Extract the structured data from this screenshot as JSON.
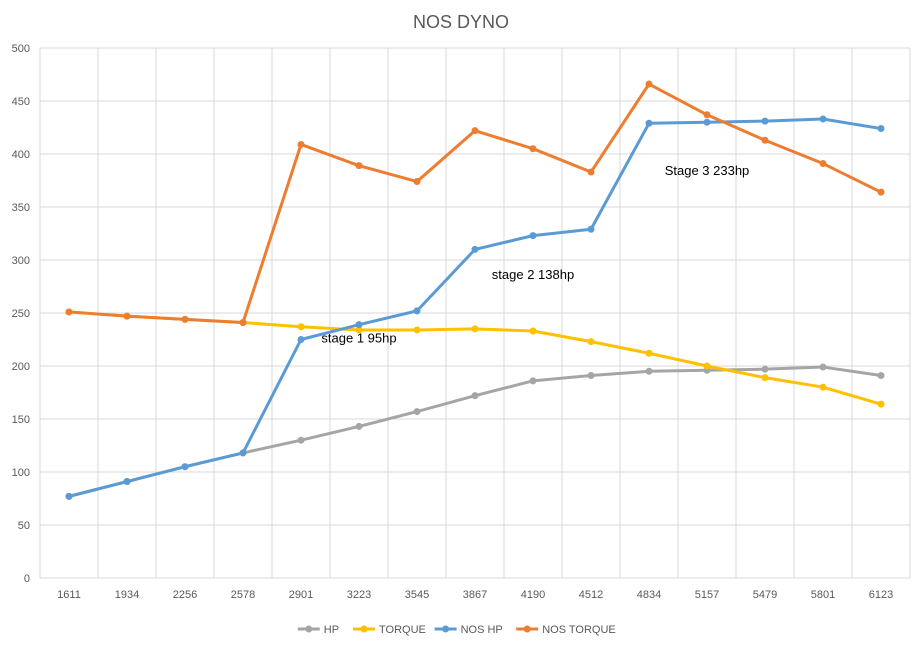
{
  "chart_data": {
    "type": "line",
    "title": "NOS DYNO",
    "categories": [
      "1611",
      "1934",
      "2256",
      "2578",
      "2901",
      "3223",
      "3545",
      "3867",
      "4190",
      "4512",
      "4834",
      "5157",
      "5479",
      "5801",
      "6123"
    ],
    "ylim": [
      0,
      500
    ],
    "yticks": [
      0,
      50,
      100,
      150,
      200,
      250,
      300,
      350,
      400,
      450,
      500
    ],
    "grid": true,
    "legend_position": "bottom",
    "series": [
      {
        "name": "HP",
        "color": "#a5a5a5",
        "values": [
          77,
          91,
          105,
          118,
          130,
          143,
          157,
          172,
          186,
          191,
          195,
          196,
          197,
          199,
          191
        ]
      },
      {
        "name": "TORQUE",
        "color": "#ffc000",
        "values": [
          251,
          247,
          244,
          241,
          237,
          234,
          234,
          235,
          233,
          223,
          212,
          200,
          189,
          180,
          164
        ]
      },
      {
        "name": "NOS HP",
        "color": "#5b9bd5",
        "values": [
          77,
          91,
          105,
          118,
          225,
          239,
          252,
          310,
          323,
          329,
          429,
          430,
          431,
          433,
          424
        ]
      },
      {
        "name": "NOS TORQUE",
        "color": "#ed7d31",
        "values": [
          251,
          247,
          244,
          241,
          409,
          389,
          374,
          422,
          405,
          383,
          466,
          437,
          413,
          391,
          364
        ]
      }
    ],
    "annotations": [
      {
        "text": "stage 1 95hp",
        "category": "3223",
        "y": 222
      },
      {
        "text": "stage 2 138hp",
        "category": "4190",
        "y": 282
      },
      {
        "text": "Stage 3 233hp",
        "category": "5157",
        "y": 380
      }
    ]
  }
}
